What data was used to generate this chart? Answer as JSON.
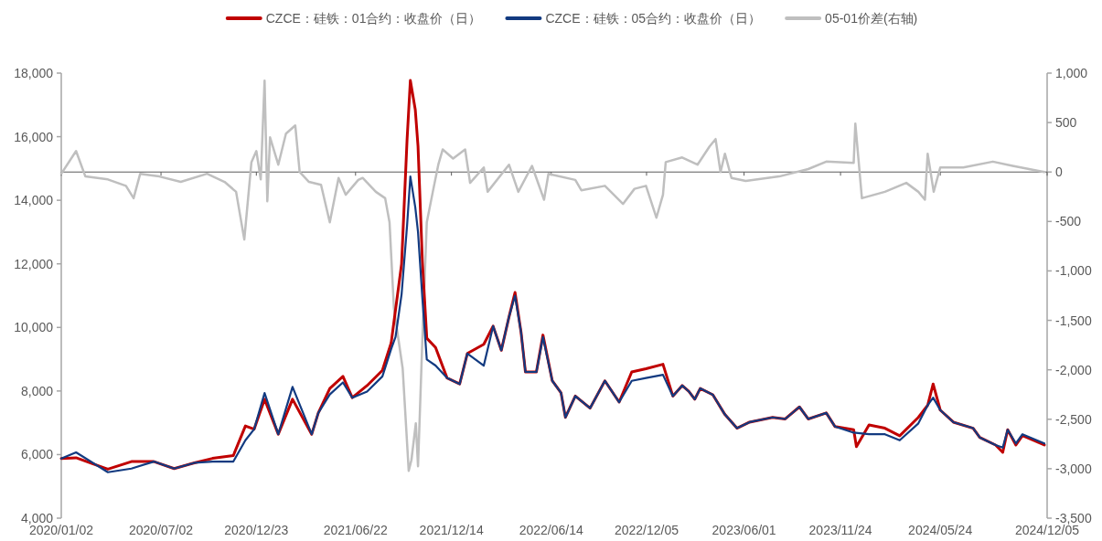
{
  "chart_data": {
    "type": "line",
    "legend": "top",
    "xlim": [
      "2020-01-02",
      "2024-12-05"
    ],
    "xticks": [
      {
        "value": "2020-01-02",
        "label": "2020/01/02"
      },
      {
        "value": "2020-07-02",
        "label": "2020/07/02"
      },
      {
        "value": "2020-12-23",
        "label": "2020/12/23"
      },
      {
        "value": "2021-06-22",
        "label": "2021/06/22"
      },
      {
        "value": "2021-12-14",
        "label": "2021/12/14"
      },
      {
        "value": "2022-06-14",
        "label": "2022/06/14"
      },
      {
        "value": "2022-12-05",
        "label": "2022/12/05"
      },
      {
        "value": "2023-06-01",
        "label": "2023/06/01"
      },
      {
        "value": "2023-11-24",
        "label": "2023/11/24"
      },
      {
        "value": "2024-05-24",
        "label": "2024/05/24"
      },
      {
        "value": "2024-12-05",
        "label": "2024/12/05"
      }
    ],
    "ylim": [
      4000,
      18000
    ],
    "yticks": [
      {
        "value": 4000,
        "label": "4,000"
      },
      {
        "value": 6000,
        "label": "6,000"
      },
      {
        "value": 8000,
        "label": "8,000"
      },
      {
        "value": 10000,
        "label": "10,000"
      },
      {
        "value": 12000,
        "label": "12,000"
      },
      {
        "value": 14000,
        "label": "14,000"
      },
      {
        "value": 16000,
        "label": "16,000"
      },
      {
        "value": 18000,
        "label": "18,000"
      }
    ],
    "y2lim": [
      -3500,
      1000
    ],
    "y2ticks": [
      {
        "value": -3500,
        "label": "-3,500"
      },
      {
        "value": -3000,
        "label": "-3,000"
      },
      {
        "value": -2500,
        "label": "-2,500"
      },
      {
        "value": -2000,
        "label": "-2,000"
      },
      {
        "value": -1500,
        "label": "-1,500"
      },
      {
        "value": -1000,
        "label": "-1,000"
      },
      -500,
      0,
      500,
      {
        "value": 1000,
        "label": "1,000"
      }
    ],
    "ref_lines": [
      {
        "axis": "y2",
        "value": 0,
        "color": "#595959"
      }
    ],
    "series": [
      {
        "name": "CZCE：硅铁：01合约：收盘价（日）",
        "type": "line",
        "color": "#c00000",
        "x": [
          "2020-01-02",
          "2020-01-29",
          "2020-03-27",
          "2020-05-09",
          "2020-06-19",
          "2020-07-26",
          "2020-09-01",
          "2020-10-04",
          "2020-11-11",
          "2020-12-03",
          "2020-12-19",
          "2021-01-07",
          "2021-02-01",
          "2021-02-27",
          "2021-04-03",
          "2021-04-15",
          "2021-05-06",
          "2021-05-30",
          "2021-06-16",
          "2021-07-13",
          "2021-08-10",
          "2021-08-26",
          "2021-09-03",
          "2021-09-14",
          "2021-09-24",
          "2021-09-30",
          "2021-10-09",
          "2021-10-14",
          "2021-10-22",
          "2021-10-30",
          "2021-11-15",
          "2021-12-06",
          "2021-12-29",
          "2022-01-12",
          "2022-02-11",
          "2022-02-28",
          "2022-03-15",
          "2022-03-29",
          "2022-04-09",
          "2022-04-20",
          "2022-04-28",
          "2022-05-18",
          "2022-05-30",
          "2022-06-16",
          "2022-07-02",
          "2022-07-10",
          "2022-07-28",
          "2022-08-24",
          "2022-09-20",
          "2022-10-16",
          "2022-11-08",
          "2022-12-04",
          "2023-01-04",
          "2023-01-22",
          "2023-02-08",
          "2023-02-20",
          "2023-03-03",
          "2023-03-13",
          "2023-04-05",
          "2023-04-27",
          "2023-05-19",
          "2023-06-11",
          "2023-07-23",
          "2023-08-15",
          "2023-09-10",
          "2023-09-26",
          "2023-10-29",
          "2023-11-14",
          "2023-12-18",
          "2023-12-23",
          "2024-01-15",
          "2024-02-13",
          "2024-03-11",
          "2024-04-14",
          "2024-05-01",
          "2024-05-11",
          "2024-05-24",
          "2024-06-17",
          "2024-07-23",
          "2024-08-04",
          "2024-09-02",
          "2024-09-15",
          "2024-09-24",
          "2024-10-09",
          "2024-10-21",
          "2024-11-30"
        ],
        "values": [
          5877,
          5900,
          5540,
          5780,
          5780,
          5560,
          5740,
          5880,
          5970,
          6900,
          6800,
          7740,
          6640,
          7740,
          6640,
          7310,
          8080,
          8460,
          7790,
          8170,
          8650,
          9510,
          10560,
          11990,
          15900,
          17770,
          16850,
          15700,
          12050,
          9660,
          9370,
          8410,
          8220,
          9180,
          9470,
          10040,
          9280,
          10330,
          11100,
          9850,
          8600,
          8600,
          9760,
          8320,
          7940,
          7170,
          7840,
          7460,
          8320,
          7650,
          8600,
          8700,
          8840,
          7840,
          8170,
          7990,
          7740,
          8080,
          7880,
          7260,
          6830,
          7020,
          7170,
          7120,
          7500,
          7120,
          7310,
          6880,
          6780,
          6250,
          6930,
          6830,
          6590,
          7170,
          7550,
          8220,
          7400,
          7020,
          6830,
          6540,
          6300,
          6070,
          6780,
          6300,
          6600,
          6300
        ]
      },
      {
        "name": "CZCE：硅铁：05合约：收盘价（日）",
        "type": "line",
        "color": "#123a80",
        "x": [
          "2020-01-02",
          "2020-01-29",
          "2020-03-27",
          "2020-05-09",
          "2020-06-19",
          "2020-07-26",
          "2020-09-01",
          "2020-10-04",
          "2020-11-11",
          "2020-12-03",
          "2020-12-19",
          "2021-01-07",
          "2021-02-01",
          "2021-02-27",
          "2021-04-03",
          "2021-04-15",
          "2021-05-06",
          "2021-05-30",
          "2021-06-16",
          "2021-07-13",
          "2021-08-10",
          "2021-08-26",
          "2021-09-03",
          "2021-09-14",
          "2021-09-24",
          "2021-09-30",
          "2021-10-09",
          "2021-10-14",
          "2021-10-22",
          "2021-10-30",
          "2021-11-15",
          "2021-12-06",
          "2021-12-29",
          "2022-01-12",
          "2022-02-11",
          "2022-02-28",
          "2022-03-15",
          "2022-03-29",
          "2022-04-09",
          "2022-04-20",
          "2022-04-28",
          "2022-05-18",
          "2022-05-30",
          "2022-06-16",
          "2022-07-02",
          "2022-07-10",
          "2022-07-28",
          "2022-08-24",
          "2022-09-20",
          "2022-10-16",
          "2022-11-08",
          "2022-12-04",
          "2023-01-04",
          "2023-01-22",
          "2023-02-08",
          "2023-02-20",
          "2023-03-03",
          "2023-03-13",
          "2023-04-05",
          "2023-04-27",
          "2023-05-19",
          "2023-06-11",
          "2023-07-23",
          "2023-08-15",
          "2023-09-10",
          "2023-09-26",
          "2023-10-29",
          "2023-11-14",
          "2023-12-18",
          "2024-01-15",
          "2024-02-13",
          "2024-03-11",
          "2024-04-14",
          "2024-05-01",
          "2024-05-11",
          "2024-05-24",
          "2024-06-17",
          "2024-07-23",
          "2024-08-04",
          "2024-09-02",
          "2024-09-15",
          "2024-09-24",
          "2024-10-09",
          "2024-10-21",
          "2024-11-30"
        ],
        "values": [
          5877,
          6070,
          5445,
          5560,
          5780,
          5560,
          5740,
          5780,
          5780,
          6450,
          6800,
          7937,
          6640,
          8130,
          6640,
          7310,
          7890,
          8270,
          7790,
          7980,
          8460,
          9320,
          9700,
          11040,
          13200,
          14750,
          13780,
          13000,
          10900,
          8990,
          8800,
          8410,
          8220,
          9180,
          8800,
          10040,
          9280,
          10330,
          11000,
          9850,
          8600,
          8600,
          9700,
          8320,
          7940,
          7170,
          7840,
          7460,
          8320,
          7650,
          8320,
          8410,
          8510,
          7840,
          8170,
          7990,
          7740,
          8080,
          7880,
          7260,
          6830,
          7020,
          7170,
          7120,
          7500,
          7120,
          7310,
          6880,
          6690,
          6640,
          6640,
          6450,
          6980,
          7550,
          7790,
          7400,
          7020,
          6830,
          6540,
          6300,
          6220,
          6780,
          6350,
          6640,
          6350
        ]
      },
      {
        "name": "05-01价差(右轴)",
        "type": "line",
        "color": "#bfbfbf",
        "axis": "y2",
        "x": [
          "2020-01-02",
          "2020-01-29",
          "2020-02-15",
          "2020-03-27",
          "2020-04-29",
          "2020-05-13",
          "2020-05-25",
          "2020-06-29",
          "2020-08-07",
          "2020-09-24",
          "2020-10-26",
          "2020-11-16",
          "2020-12-01",
          "2020-12-14",
          "2020-12-23",
          "2020-12-31",
          "2021-01-07",
          "2021-01-12",
          "2021-01-17",
          "2021-02-01",
          "2021-02-15",
          "2021-03-04",
          "2021-03-12",
          "2021-03-29",
          "2021-04-20",
          "2021-05-06",
          "2021-05-22",
          "2021-06-04",
          "2021-06-27",
          "2021-07-05",
          "2021-07-29",
          "2021-08-15",
          "2021-08-23",
          "2021-08-31",
          "2021-09-16",
          "2021-09-27",
          "2021-10-02",
          "2021-10-10",
          "2021-10-14",
          "2021-10-22",
          "2021-10-30",
          "2021-11-10",
          "2021-11-20",
          "2021-11-28",
          "2021-12-17",
          "2022-01-08",
          "2022-01-17",
          "2022-02-11",
          "2022-02-18",
          "2022-03-29",
          "2022-04-15",
          "2022-05-10",
          "2022-06-01",
          "2022-06-09",
          "2022-07-28",
          "2022-08-08",
          "2022-09-20",
          "2022-10-23",
          "2022-11-13",
          "2022-12-04",
          "2022-12-23",
          "2023-01-04",
          "2023-01-09",
          "2023-02-08",
          "2023-03-08",
          "2023-03-30",
          "2023-04-10",
          "2023-04-19",
          "2023-04-27",
          "2023-05-09",
          "2023-06-04",
          "2023-08-04",
          "2023-09-26",
          "2023-10-29",
          "2023-12-18",
          "2023-12-21",
          "2024-01-02",
          "2024-02-13",
          "2024-03-23",
          "2024-04-14",
          "2024-04-26",
          "2024-05-01",
          "2024-05-12",
          "2024-05-24",
          "2024-07-05",
          "2024-08-28",
          "2024-10-03",
          "2024-11-30"
        ],
        "values": [
          -18,
          212,
          -45,
          -75,
          -140,
          -265,
          -18,
          -45,
          -100,
          -18,
          -100,
          -200,
          -683,
          100,
          212,
          -75,
          924,
          -295,
          350,
          74,
          388,
          471,
          0,
          -100,
          -130,
          -508,
          -60,
          -230,
          -80,
          -60,
          -200,
          -265,
          -508,
          -1377,
          -1987,
          -3021,
          -2911,
          -2541,
          -2975,
          -1682,
          -508,
          -200,
          74,
          228,
          136,
          228,
          -110,
          46,
          -200,
          74,
          -200,
          62,
          -280,
          -18,
          -80,
          -185,
          -140,
          -323,
          -170,
          -140,
          -462,
          -230,
          100,
          147,
          74,
          259,
          333,
          0,
          185,
          -60,
          -90,
          -45,
          30,
          105,
          92,
          490,
          -265,
          -200,
          -110,
          -200,
          -280,
          185,
          -200,
          46,
          46,
          105,
          62,
          0
        ]
      }
    ]
  }
}
